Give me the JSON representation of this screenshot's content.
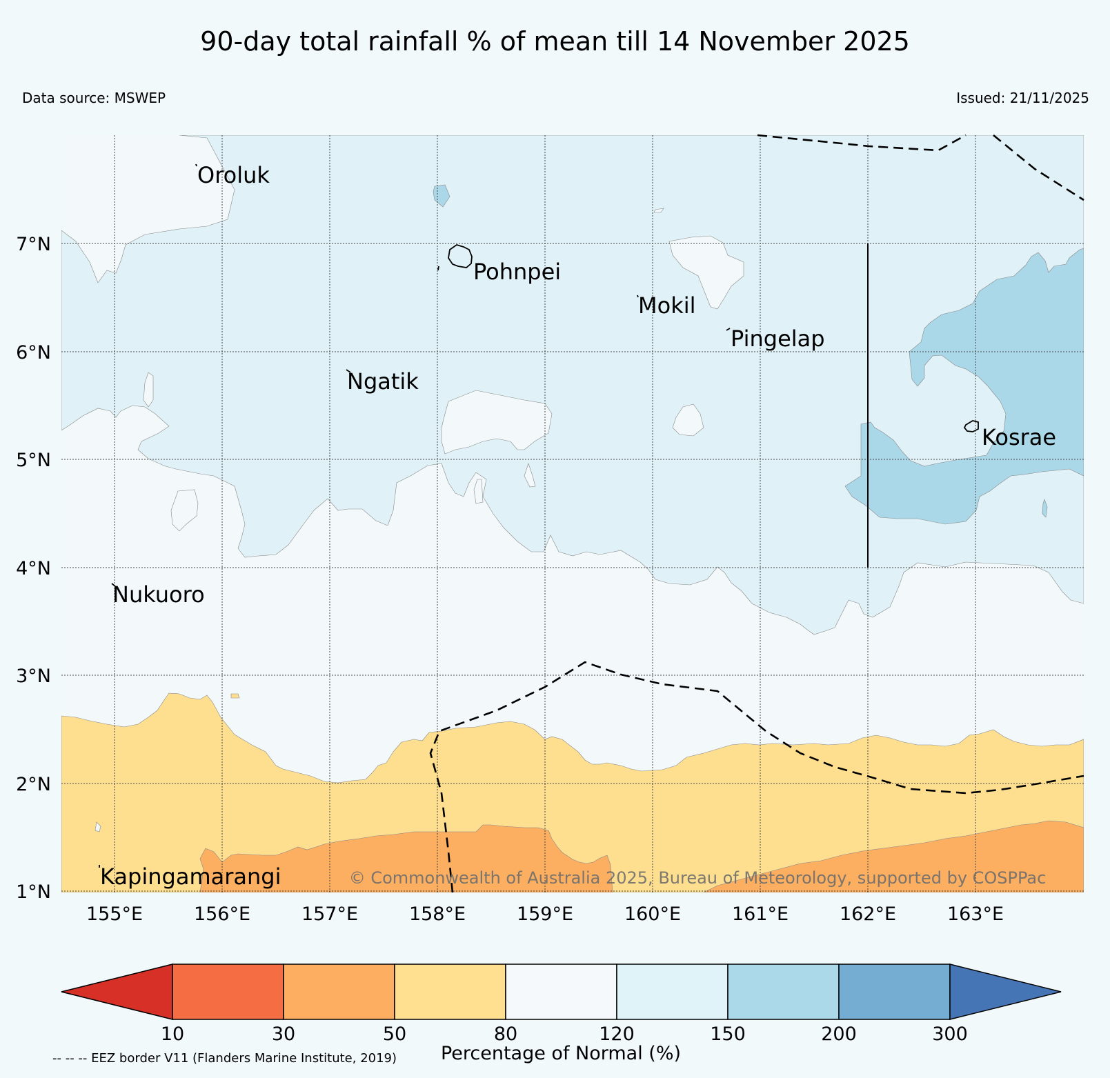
{
  "title": "90-day total rainfall % of mean till 14 November 2025",
  "data_source": "Data source: MSWEP",
  "issued": "Issued: 21/11/2025",
  "copyright": "© Commonwealth of Australia 2025, Bureau of Meteorology, supported by COSPPac",
  "eez_note": "-- -- -- EEZ border V11 (Flanders Marine Institute, 2019)",
  "map": {
    "lon_labels": [
      "155°E",
      "156°E",
      "157°E",
      "158°E",
      "159°E",
      "160°E",
      "161°E",
      "162°E",
      "163°E"
    ],
    "lat_labels": [
      "7°N",
      "6°N",
      "5°N",
      "4°N",
      "3°N",
      "2°N",
      "1°N"
    ],
    "places": [
      "Oroluk",
      "Pohnpei",
      "Mokil",
      "Pingelap",
      "Ngatik",
      "Kosrae",
      "Nukuoro",
      "Kapingamarangi"
    ]
  },
  "legend": {
    "title": "Percentage of Normal (%)",
    "ticks": [
      "10",
      "30",
      "50",
      "80",
      "120",
      "150",
      "200",
      "300"
    ],
    "colors": {
      "below10": "#d73027",
      "10_30": "#f46d43",
      "30_50": "#fdae61",
      "50_80": "#fee090",
      "80_120": "#f5f9fb",
      "120_150": "#e0f3f8",
      "150_200": "#abd9e9",
      "200_300": "#74add1",
      "above300": "#4575b4"
    }
  }
}
